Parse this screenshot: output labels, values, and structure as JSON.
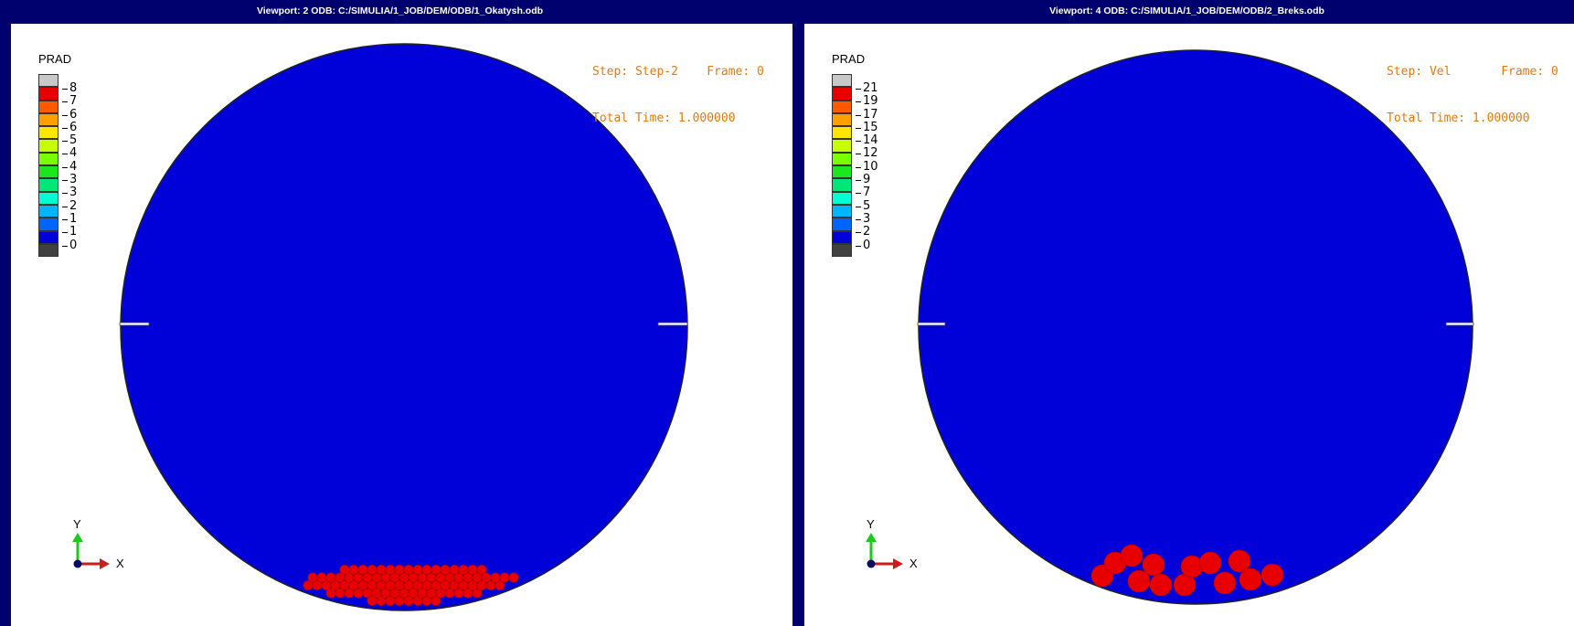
{
  "viewports": [
    {
      "title": "Viewport: 2    ODB: C:/SIMULIA/1_JOB/DEM/ODB/1_Okatysh.odb",
      "legend": {
        "title": "PRAD",
        "labels": [
          "8",
          "7",
          "6",
          "6",
          "5",
          "4",
          "4",
          "3",
          "3",
          "2",
          "1",
          "1",
          "0"
        ]
      },
      "step_line": "Step: Step-2    Frame: 0",
      "time_line": "Total Time: 1.000000",
      "triad": {
        "y": "Y",
        "x": "X"
      }
    },
    {
      "title": "Viewport: 4    ODB: C:/SIMULIA/1_JOB/DEM/ODB/2_Breks.odb",
      "legend": {
        "title": "PRAD",
        "labels": [
          "21",
          "19",
          "17",
          "15",
          "14",
          "12",
          "10",
          "9",
          "7",
          "5",
          "3",
          "2",
          "0"
        ]
      },
      "step_line": "Step: Vel       Frame: 0",
      "time_line": "Total Time: 1.000000",
      "triad": {
        "y": "Y",
        "x": "X"
      }
    }
  ],
  "colors": {
    "title_bar": "#00006e",
    "drum_fill": "#0000d8",
    "particle": "#e80000",
    "step_text": "#e07a10",
    "legend_spectrum": [
      "#c8c8c8",
      "#e60000",
      "#ff5a00",
      "#ffa000",
      "#ffe600",
      "#c8ff00",
      "#78ff00",
      "#1ee61e",
      "#00e678",
      "#00ffd2",
      "#00b4ff",
      "#0064ff",
      "#0000d8",
      "#404040"
    ]
  },
  "icons": [
    "y-axis-arrow-icon",
    "x-axis-arrow-icon",
    "origin-dot-icon"
  ]
}
